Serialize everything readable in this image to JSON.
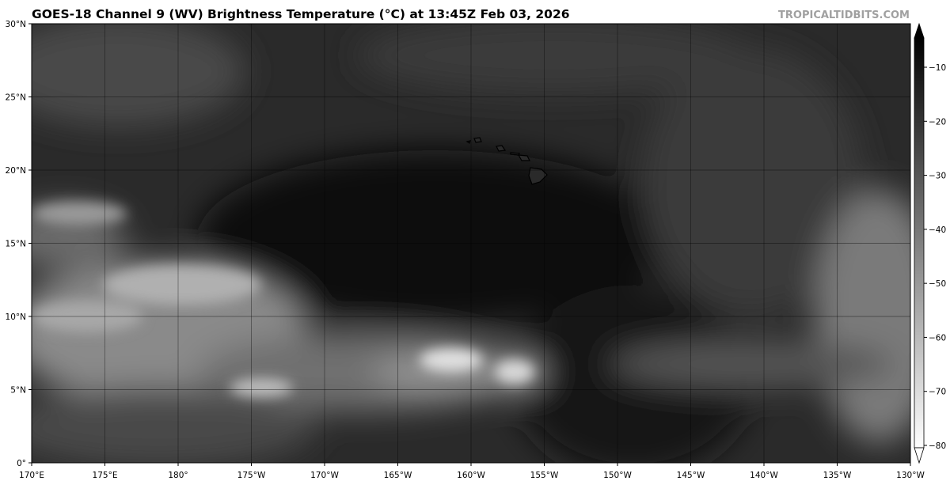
{
  "header": {
    "title": "GOES-18 Channel 9 (WV) Brightness Temperature (°C) at 13:45Z Feb 03, 2026",
    "brand": "TROPICALTIDBITS.COM"
  },
  "map": {
    "projection": "equirectangular",
    "lon_range": [
      170,
      230
    ],
    "lat_range": [
      0,
      30
    ],
    "gridlines": true,
    "lon_ticks": [
      "170°E",
      "175°E",
      "180°",
      "175°W",
      "170°W",
      "165°W",
      "160°W",
      "155°W",
      "150°W",
      "145°W",
      "140°W",
      "135°W",
      "130°W"
    ],
    "lat_ticks": [
      "0°",
      "5°N",
      "10°N",
      "15°N",
      "20°N",
      "25°N",
      "30°N"
    ],
    "features": [
      "Hawaiian Islands",
      "cloud band ITCZ",
      "dry slot"
    ]
  },
  "colorbar": {
    "ticks": [
      "−10",
      "−20",
      "−30",
      "−40",
      "−50",
      "−60",
      "−70",
      "−80"
    ],
    "range": [
      -82,
      -5
    ],
    "colormap": "grayscale (warm = black, cold = white)",
    "extend": "both"
  }
}
